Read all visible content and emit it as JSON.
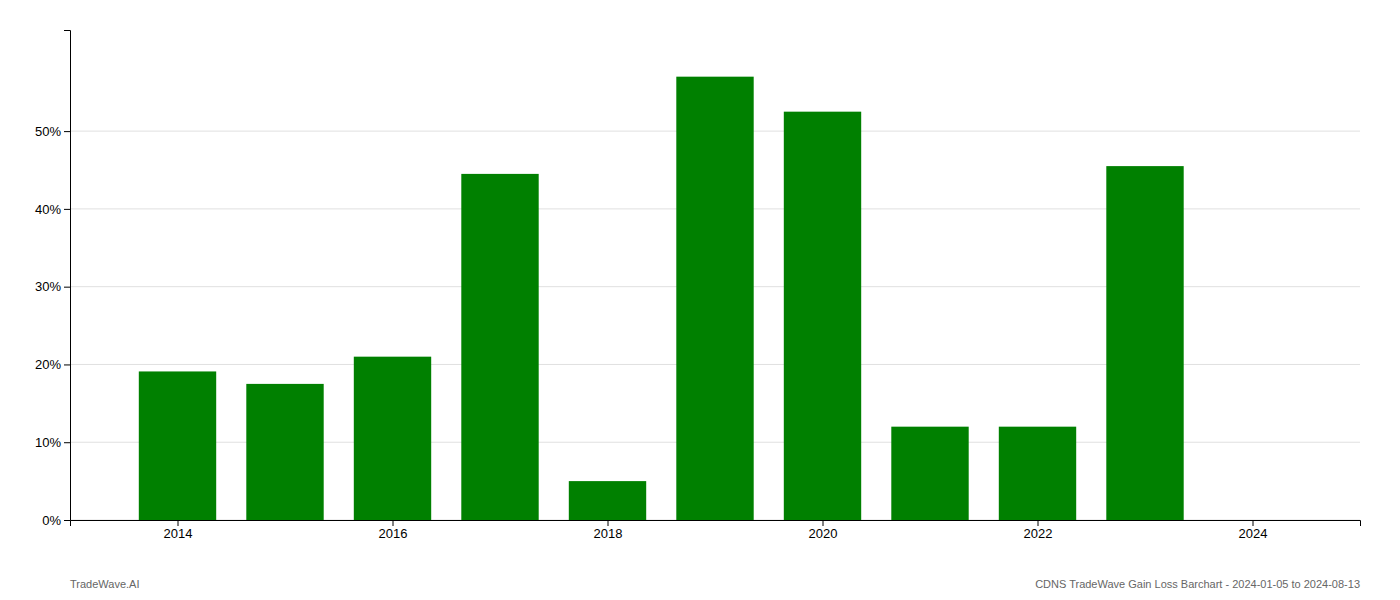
{
  "chart_data": {
    "type": "bar",
    "x": [
      2014,
      2015,
      2016,
      2017,
      2018,
      2019,
      2020,
      2021,
      2022,
      2023,
      2024
    ],
    "values": [
      19.1,
      17.5,
      21.0,
      44.5,
      5.0,
      57.0,
      52.5,
      12.0,
      12.0,
      45.5,
      0.0
    ],
    "color": "#008000",
    "xlim": [
      2013.0,
      2025.0
    ],
    "xticks": [
      2014,
      2016,
      2018,
      2020,
      2022,
      2024
    ],
    "ylim": [
      0,
      63
    ],
    "yticks": [
      {
        "value": 0,
        "label": "0%"
      },
      {
        "value": 10,
        "label": "10%"
      },
      {
        "value": 20,
        "label": "20%"
      },
      {
        "value": 30,
        "label": "30%"
      },
      {
        "value": 40,
        "label": "40%"
      },
      {
        "value": 50,
        "label": "50%"
      }
    ],
    "grid": true,
    "annotations": [
      "TradeWave.AI",
      "CDNS TradeWave Gain Loss Barchart - 2024-01-05 to 2024-08-13"
    ]
  }
}
